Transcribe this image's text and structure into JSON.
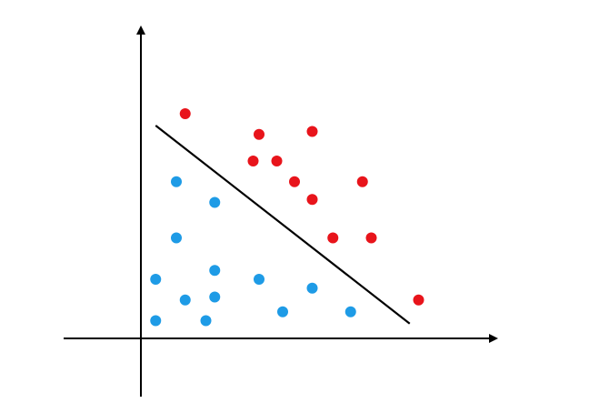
{
  "chart_data": {
    "type": "scatter",
    "title": "",
    "xlabel": "",
    "ylabel": "",
    "grid": false,
    "legend": "none",
    "xlim": [
      -2.3,
      10.0
    ],
    "ylim": [
      -1.6,
      9.0
    ],
    "series": [
      {
        "color": "#e8141b",
        "points": [
          [
            1.5,
            7.6
          ],
          [
            4.0,
            6.9
          ],
          [
            5.8,
            7.0
          ],
          [
            3.8,
            6.0
          ],
          [
            4.6,
            6.0
          ],
          [
            5.2,
            5.3
          ],
          [
            7.5,
            5.3
          ],
          [
            5.8,
            4.7
          ],
          [
            6.5,
            3.4
          ],
          [
            7.8,
            3.4
          ],
          [
            9.4,
            1.3
          ]
        ]
      },
      {
        "color": "#1e9be6",
        "points": [
          [
            1.2,
            5.3
          ],
          [
            2.5,
            4.6
          ],
          [
            1.2,
            3.4
          ],
          [
            2.5,
            2.3
          ],
          [
            0.5,
            2.0
          ],
          [
            4.0,
            2.0
          ],
          [
            5.8,
            1.7
          ],
          [
            1.5,
            1.3
          ],
          [
            2.5,
            1.4
          ],
          [
            0.5,
            0.6
          ],
          [
            2.2,
            0.6
          ],
          [
            4.8,
            0.9
          ],
          [
            7.1,
            0.9
          ]
        ]
      }
    ],
    "separator": {
      "type": "line",
      "from": [
        0.5,
        7.2
      ],
      "to": [
        9.1,
        0.5
      ],
      "color": "#000000"
    }
  }
}
